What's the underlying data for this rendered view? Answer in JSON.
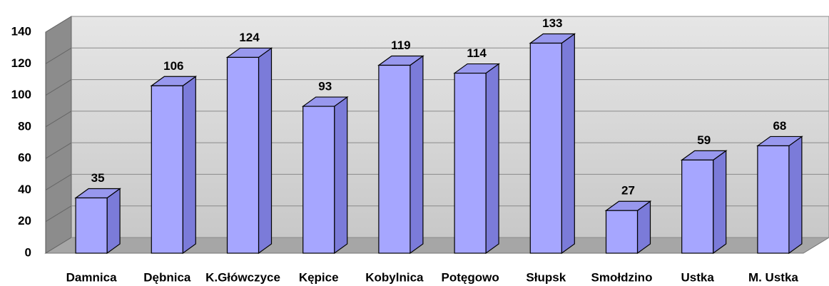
{
  "chart_data": {
    "type": "bar",
    "categories": [
      "Damnica",
      "Dębnica",
      "K.Główczyce",
      "Kępice",
      "Kobylnica",
      "Potęgowo",
      "Słupsk",
      "Smołdzino",
      "Ustka",
      "M. Ustka"
    ],
    "values": [
      35,
      106,
      124,
      93,
      119,
      114,
      133,
      27,
      59,
      68
    ],
    "color": "#a6a6ff",
    "ylim": [
      0,
      140
    ],
    "yticks": [
      0,
      20,
      40,
      60,
      80,
      100,
      120,
      140
    ],
    "grid": true
  }
}
